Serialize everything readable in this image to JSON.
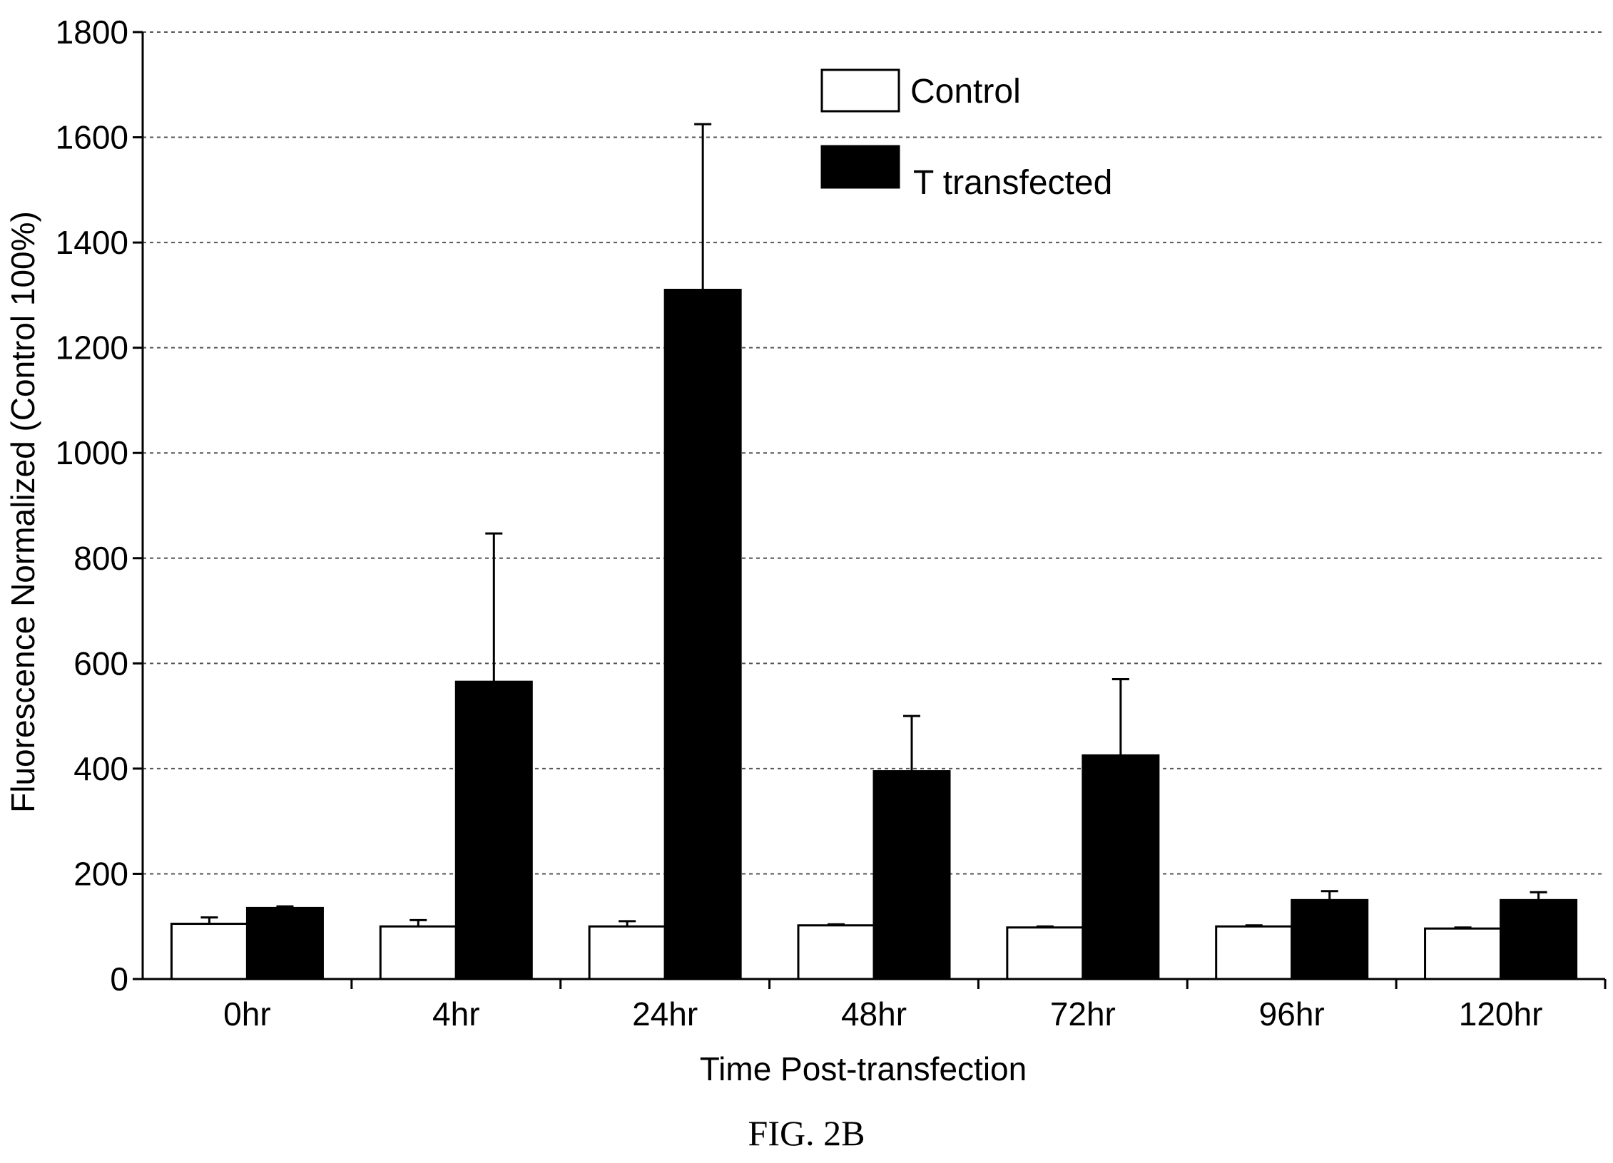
{
  "chart_data": {
    "type": "bar",
    "categories": [
      "0hr",
      "4hr",
      "24hr",
      "48hr",
      "72hr",
      "96hr",
      "120hr"
    ],
    "series": [
      {
        "name": "Control",
        "values": [
          105,
          100,
          100,
          102,
          98,
          100,
          96
        ],
        "error": [
          12,
          12,
          10,
          2,
          2,
          2,
          2
        ],
        "color": "#ffffff"
      },
      {
        "name": "T transfected",
        "values": [
          135,
          565,
          1310,
          395,
          425,
          150,
          150
        ],
        "error": [
          3,
          282,
          315,
          105,
          145,
          17,
          15
        ],
        "color": "#000000"
      }
    ],
    "xlabel": "Time Post-transfection",
    "ylabel": "Fluorescence Normalized (Control 100%)",
    "ylim": [
      0,
      1800
    ],
    "yticks": [
      0,
      200,
      400,
      600,
      800,
      1000,
      1200,
      1400,
      1600,
      1800
    ],
    "grid": true,
    "legend": "top-center"
  },
  "caption": "FIG. 2B"
}
